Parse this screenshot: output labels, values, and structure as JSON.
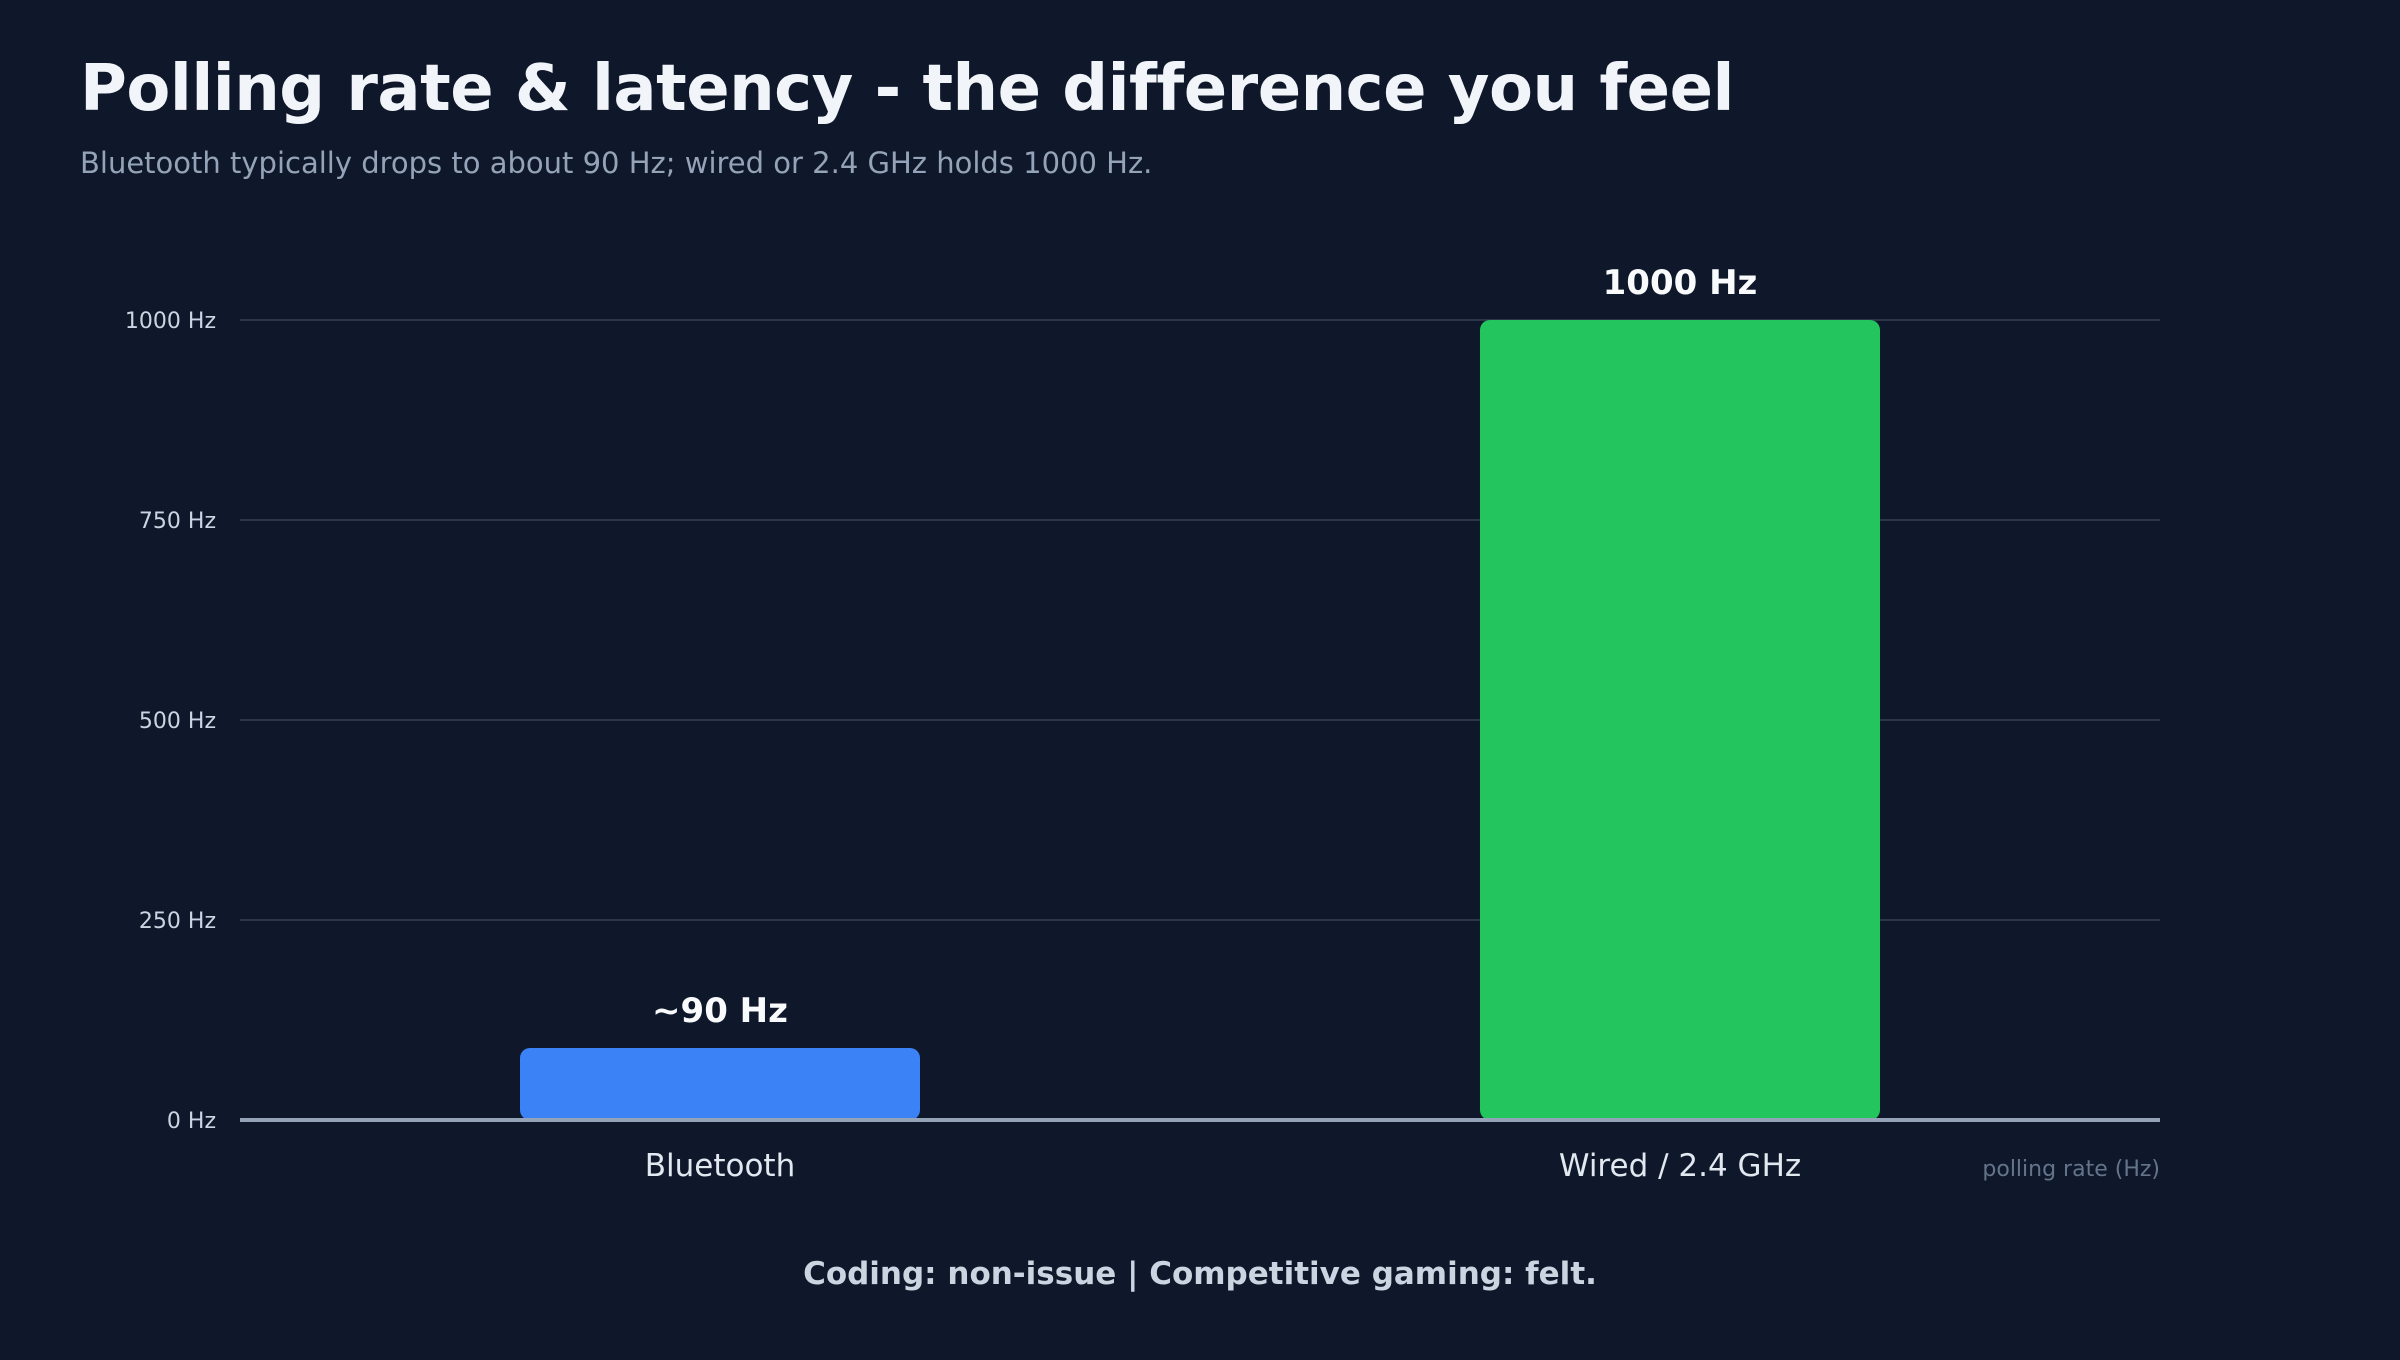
{
  "title": "Polling rate & latency - the difference you feel",
  "subtitle": "Bluetooth typically drops to about 90 Hz; wired or 2.4 GHz holds 1000 Hz.",
  "footer": "Coding: non-issue | Competitive gaming: felt.",
  "colors": {
    "background": "#0f172a",
    "bluetooth": "#3b82f6",
    "wired": "#22c55e",
    "grid": "#334155",
    "baseline": "#94a3b8"
  },
  "chart_data": {
    "type": "bar",
    "categories": [
      "Bluetooth",
      "Wired / 2.4 GHz"
    ],
    "values": [
      90,
      1000
    ],
    "data_labels": [
      "~90 Hz",
      "1000 Hz"
    ],
    "bar_colors": [
      "#3b82f6",
      "#22c55e"
    ],
    "ylim": [
      0,
      1000
    ],
    "yticks": [
      0,
      250,
      500,
      750,
      1000
    ],
    "ytick_labels": [
      "0 Hz",
      "250 Hz",
      "500 Hz",
      "750 Hz",
      "1000 Hz"
    ],
    "xlabel": "polling rate (Hz)",
    "grid": true,
    "legend": "none"
  }
}
